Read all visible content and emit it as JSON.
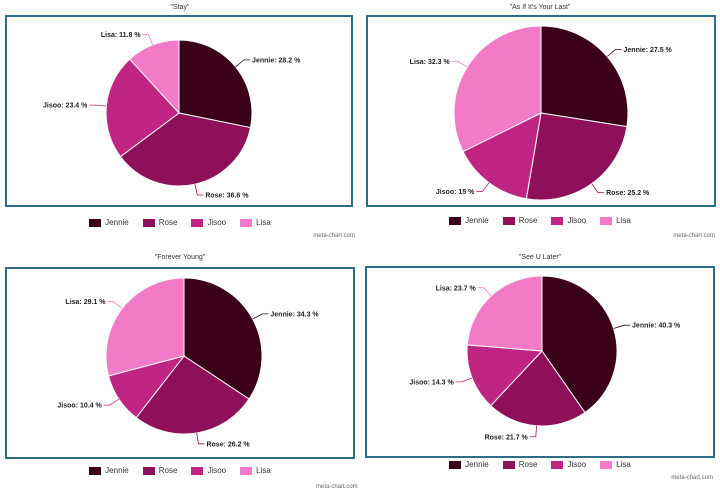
{
  "colors": {
    "Jennie": "#3a0118",
    "Rose": "#8d1058",
    "Jisoo": "#c12583",
    "Lisa": "#f27ac7"
  },
  "credit": "meta-chart.com",
  "chart_data": [
    {
      "type": "pie",
      "title": "\"Stay\"",
      "categories": [
        "Jennie",
        "Rose",
        "Jisoo",
        "Lisa"
      ],
      "values": [
        28.2,
        36.6,
        23.4,
        11.8
      ],
      "labels": [
        "Jennie: 28.2 %",
        "Rose: 36.6 %",
        "Jisoo: 23.4 %",
        "Lisa: 11.8 %"
      ],
      "legend": [
        "Jennie",
        "Rose",
        "Jisoo",
        "Lisa"
      ],
      "legend_position": "bottom"
    },
    {
      "type": "pie",
      "title": "\"As If It's Your Last\"",
      "categories": [
        "Jennie",
        "Rose",
        "Jisoo",
        "Lisa"
      ],
      "values": [
        27.5,
        25.2,
        15,
        32.3
      ],
      "labels": [
        "Jennie: 27.5 %",
        "Rose: 25.2 %",
        "Jisoo: 15 %",
        "Lisa: 32.3 %"
      ],
      "legend": [
        "Jennie",
        "Rose",
        "Jisoo",
        "Lisa"
      ],
      "legend_position": "bottom"
    },
    {
      "type": "pie",
      "title": "\"Forever Young\"",
      "categories": [
        "Jennie",
        "Rose",
        "Jisoo",
        "Lisa"
      ],
      "values": [
        34.3,
        26.2,
        10.4,
        29.1
      ],
      "labels": [
        "Jennie: 34.3 %",
        "Rose: 26.2 %",
        "Jisoo: 10.4 %",
        "Lisa: 29.1 %"
      ],
      "legend": [
        "Jennie",
        "Rose",
        "Jisoo",
        "Lisa"
      ],
      "legend_position": "bottom"
    },
    {
      "type": "pie",
      "title": "\"See U Later\"",
      "categories": [
        "Jennie",
        "Rose",
        "Jisoo",
        "Lisa"
      ],
      "values": [
        40.3,
        21.7,
        14.3,
        23.7
      ],
      "labels": [
        "Jennie: 40.3 %",
        "Rose: 21.7 %",
        "Jisoo: 14.3 %",
        "Lisa: 23.7 %"
      ],
      "legend": [
        "Jennie",
        "Rose",
        "Jisoo",
        "Lisa"
      ],
      "legend_position": "bottom"
    }
  ]
}
